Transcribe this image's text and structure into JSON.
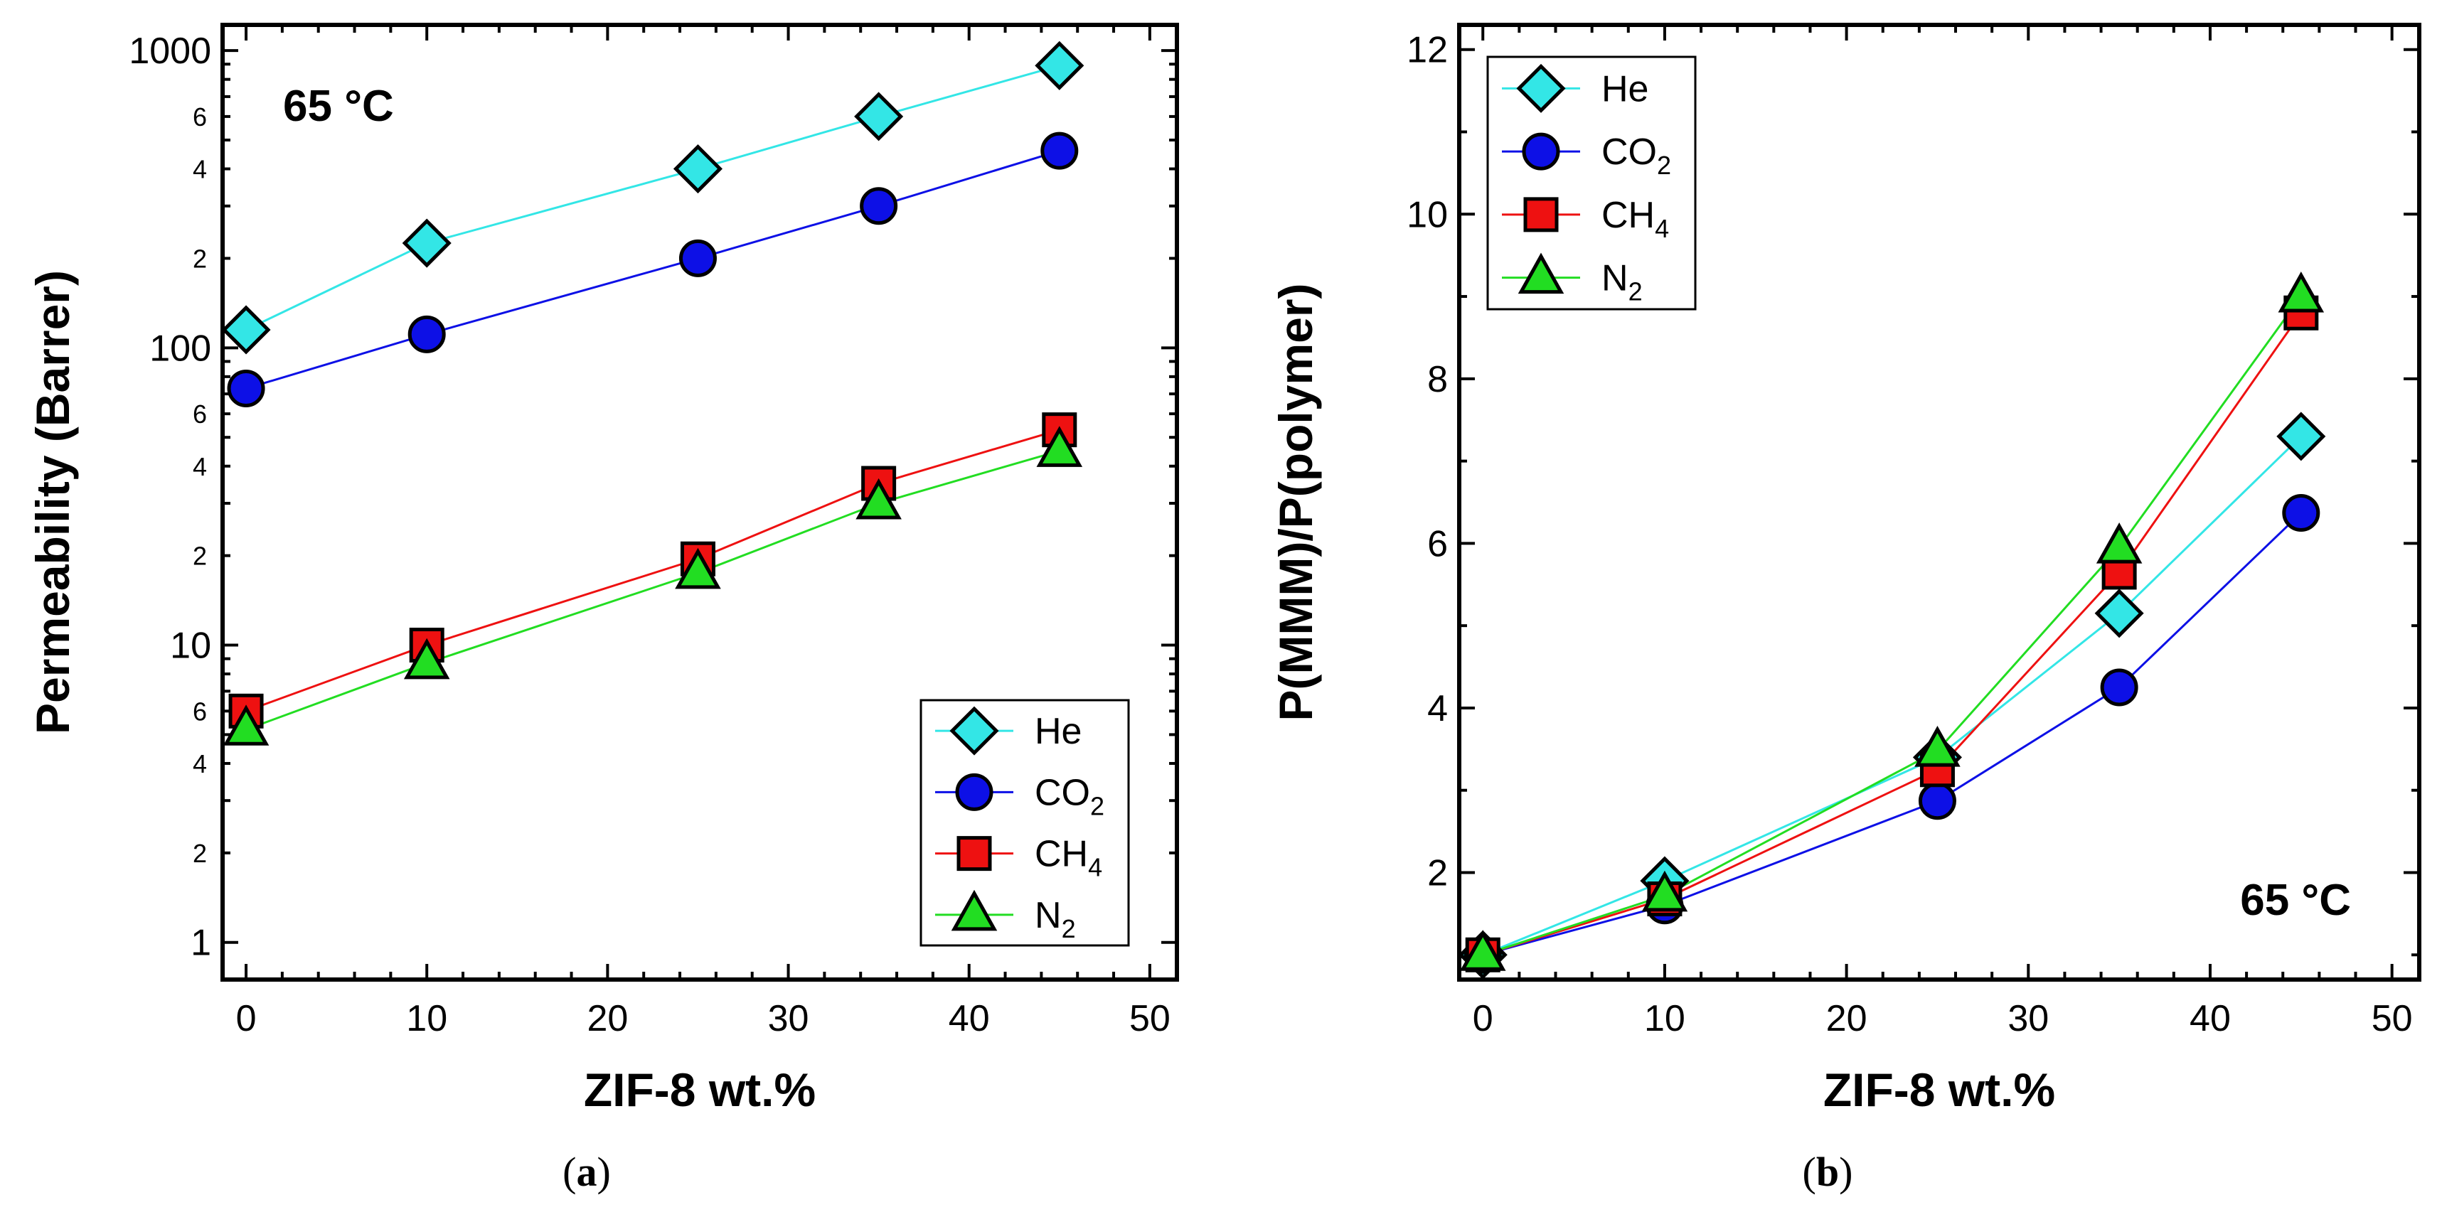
{
  "chart_data": [
    {
      "type": "line",
      "panel": "a",
      "caption": {
        "open": "(",
        "letter": "a",
        "close": ")"
      },
      "annotation": "65 °C",
      "xlabel": "ZIF-8 wt.%",
      "ylabel": "Permeability (Barrer)",
      "xlim": [
        -1.3,
        51.5
      ],
      "ylim": [
        0.75,
        1220
      ],
      "yscale": "log",
      "x_ticks": [
        "0",
        "10",
        "20",
        "30",
        "40",
        "50"
      ],
      "y_major_ticks": [
        "1",
        "10",
        "100",
        "1000"
      ],
      "y_minor_labels": [
        "2",
        "4",
        "6"
      ],
      "legend_position": "bottom-right",
      "x": [
        0,
        10,
        25,
        35,
        45
      ],
      "series": [
        {
          "name": "He",
          "label_main": "He",
          "label_sub": "",
          "marker": "diamond",
          "color": "#33e6e6",
          "line": "#33e6e6",
          "values": [
            115,
            225,
            400,
            600,
            890
          ]
        },
        {
          "name": "CO2",
          "label_main": "CO",
          "label_sub": "2",
          "marker": "circle",
          "color": "#0d10e6",
          "line": "#0d10e6",
          "values": [
            73,
            111,
            200,
            300,
            460
          ]
        },
        {
          "name": "CH4",
          "label_main": "CH",
          "label_sub": "4",
          "marker": "square",
          "color": "#ee1111",
          "line": "#ee1111",
          "values": [
            6.0,
            10.0,
            19.5,
            35,
            53
          ]
        },
        {
          "name": "N2",
          "label_main": "N",
          "label_sub": "2",
          "marker": "triangle",
          "color": "#22dd22",
          "line": "#22dd22",
          "values": [
            5.2,
            8.7,
            17.5,
            30,
            45
          ]
        }
      ]
    },
    {
      "type": "line",
      "panel": "b",
      "caption": {
        "open": "(",
        "letter": "b",
        "close": ")"
      },
      "annotation": "65 °C",
      "xlabel": "ZIF-8 wt.%",
      "ylabel": "P(MMM)/P(polymer)",
      "xlim": [
        -1.3,
        51.5
      ],
      "ylim": [
        0.7,
        12.3
      ],
      "yscale": "linear",
      "x_ticks": [
        "0",
        "10",
        "20",
        "30",
        "40",
        "50"
      ],
      "y_ticks": [
        "2",
        "4",
        "6",
        "8",
        "10",
        "12"
      ],
      "legend_position": "top-left",
      "x": [
        0,
        10,
        25,
        35,
        45
      ],
      "series": [
        {
          "name": "He",
          "label_main": "He",
          "label_sub": "",
          "marker": "diamond",
          "color": "#33e6e6",
          "line": "#33e6e6",
          "values": [
            1.0,
            1.9,
            3.4,
            5.15,
            7.3
          ]
        },
        {
          "name": "CO2",
          "label_main": "CO",
          "label_sub": "2",
          "marker": "circle",
          "color": "#0d10e6",
          "line": "#0d10e6",
          "values": [
            1.0,
            1.6,
            2.87,
            4.25,
            6.37
          ]
        },
        {
          "name": "CH4",
          "label_main": "CH",
          "label_sub": "4",
          "marker": "square",
          "color": "#ee1111",
          "line": "#ee1111",
          "values": [
            1.0,
            1.68,
            3.25,
            5.65,
            8.8
          ]
        },
        {
          "name": "N2",
          "label_main": "N",
          "label_sub": "2",
          "marker": "triangle",
          "color": "#22dd22",
          "line": "#22dd22",
          "values": [
            1.0,
            1.72,
            3.48,
            5.95,
            9.0
          ]
        }
      ]
    }
  ]
}
